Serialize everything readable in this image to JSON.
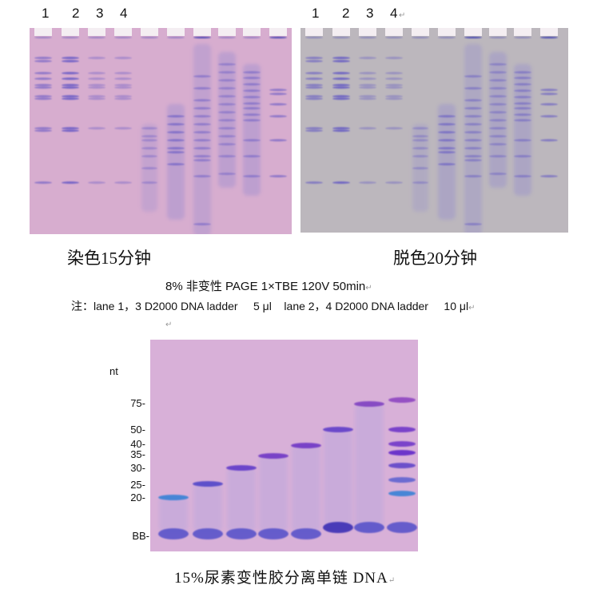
{
  "gel_left": {
    "lane_labels": [
      "1",
      "2",
      "3",
      "4"
    ],
    "caption": "染色15分钟",
    "background": "#d7adcf"
  },
  "gel_right": {
    "lane_labels": [
      "1",
      "2",
      "3",
      "4"
    ],
    "caption": "脱色20分钟",
    "background": "#bcb7bd"
  },
  "conditions": "8%  非变性 PAGE 1×TBE 120V 50min",
  "note": "注：lane 1，3 D2000 DNA ladder     5 μl    lane 2，4 D2000 DNA ladder     10 μl",
  "paragraph_mark": "↵",
  "gel_bottom": {
    "unit_label": "nt",
    "size_markers": [
      "75-",
      "50-",
      "40-",
      "35-",
      "30-",
      "25-",
      "20-",
      "BB-"
    ],
    "caption": "15%尿素变性胶分离单链 DNA",
    "background": "#d8b0d8"
  }
}
